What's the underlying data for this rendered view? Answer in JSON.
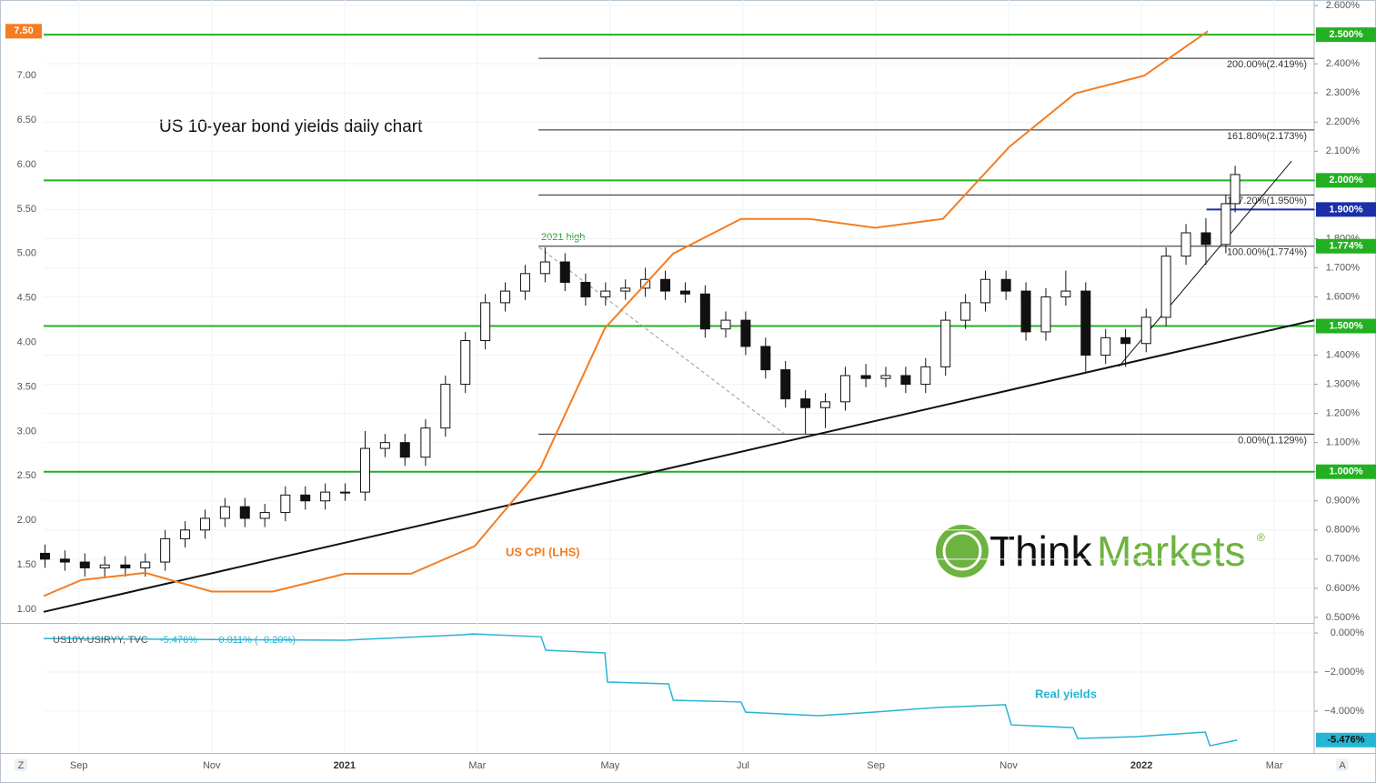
{
  "chart_data": {
    "type": "candlestick",
    "title": "US 10-year bond yields daily chart",
    "annotations": {
      "high": "2021 high",
      "real": "Real yields"
    },
    "logo": {
      "part1": "Think",
      "part2": "Markets",
      "mark": "®"
    },
    "corner_buttons": [
      "Z",
      "A"
    ],
    "xlim": [
      0.47,
      19.6
    ],
    "xticks": [
      {
        "value": 1,
        "label": "Sep"
      },
      {
        "value": 3,
        "label": "Nov"
      },
      {
        "value": 5,
        "label": "2021"
      },
      {
        "value": 7,
        "label": "Mar"
      },
      {
        "value": 9,
        "label": "May"
      },
      {
        "value": 11,
        "label": "Jul"
      },
      {
        "value": 13,
        "label": "Sep"
      },
      {
        "value": 15,
        "label": "Nov"
      },
      {
        "value": 17,
        "label": "2022"
      },
      {
        "value": 19,
        "label": "Mar"
      }
    ],
    "ylim": [
      0.481,
      2.619
    ],
    "yticks": [
      {
        "value": 0.5,
        "label": "0.500%"
      },
      {
        "value": 0.6,
        "label": "0.600%"
      },
      {
        "value": 0.7,
        "label": "0.700%"
      },
      {
        "value": 0.8,
        "label": "0.800%"
      },
      {
        "value": 0.9,
        "label": "0.900%"
      },
      {
        "value": 1.0,
        "label": "1.000%"
      },
      {
        "value": 1.1,
        "label": "1.100%"
      },
      {
        "value": 1.2,
        "label": "1.200%"
      },
      {
        "value": 1.3,
        "label": "1.300%"
      },
      {
        "value": 1.4,
        "label": "1.400%"
      },
      {
        "value": 1.5,
        "label": "1.500%"
      },
      {
        "value": 1.6,
        "label": "1.600%"
      },
      {
        "value": 1.7,
        "label": "1.700%"
      },
      {
        "value": 1.8,
        "label": "1.800%"
      },
      {
        "value": 1.9,
        "label": "1.900%"
      },
      {
        "value": 2.0,
        "label": "2.000%"
      },
      {
        "value": 2.1,
        "label": "2.100%"
      },
      {
        "value": 2.2,
        "label": "2.200%"
      },
      {
        "value": 2.3,
        "label": "2.300%"
      },
      {
        "value": 2.4,
        "label": "2.400%"
      },
      {
        "value": 2.5,
        "label": "2.500%"
      },
      {
        "value": 2.6,
        "label": "2.600%"
      }
    ],
    "y2lim": [
      0.847,
      7.851
    ],
    "y2ticks": [
      {
        "value": 1,
        "label": "1.00"
      },
      {
        "value": 1.5,
        "label": "1.50"
      },
      {
        "value": 2,
        "label": "2.00"
      },
      {
        "value": 2.5,
        "label": "2.50"
      },
      {
        "value": 3,
        "label": "3.00"
      },
      {
        "value": 3.5,
        "label": "3.50"
      },
      {
        "value": 4,
        "label": "4.00"
      },
      {
        "value": 4.5,
        "label": "4.50"
      },
      {
        "value": 5,
        "label": "5.00"
      },
      {
        "value": 5.5,
        "label": "5.50"
      },
      {
        "value": 6,
        "label": "6.00"
      },
      {
        "value": 6.5,
        "label": "6.50"
      },
      {
        "value": 7,
        "label": "7.00"
      }
    ],
    "y2_badge": {
      "value": 7.5,
      "label": "7.50",
      "color": "#f57c20"
    },
    "candles": {
      "x": [
        0.49,
        0.79,
        1.09,
        1.39,
        1.7,
        2.0,
        2.3,
        2.6,
        2.9,
        3.2,
        3.5,
        3.8,
        4.11,
        4.41,
        4.71,
        5.01,
        5.31,
        5.61,
        5.91,
        6.22,
        6.52,
        6.82,
        7.12,
        7.42,
        7.72,
        8.02,
        8.32,
        8.63,
        8.93,
        9.23,
        9.53,
        9.83,
        10.13,
        10.43,
        10.74,
        11.04,
        11.34,
        11.64,
        11.94,
        12.24,
        12.54,
        12.85,
        13.15,
        13.45,
        13.75,
        14.05,
        14.35,
        14.65,
        14.96,
        15.26,
        15.56,
        15.86,
        16.16,
        16.46,
        16.76,
        17.07,
        17.37,
        17.67,
        17.97,
        18.27,
        18.41
      ],
      "open": [
        0.72,
        0.7,
        0.69,
        0.67,
        0.68,
        0.67,
        0.69,
        0.77,
        0.8,
        0.84,
        0.88,
        0.84,
        0.86,
        0.92,
        0.9,
        0.93,
        0.93,
        1.08,
        1.1,
        1.05,
        1.15,
        1.3,
        1.45,
        1.58,
        1.62,
        1.68,
        1.72,
        1.65,
        1.6,
        1.62,
        1.63,
        1.66,
        1.62,
        1.61,
        1.49,
        1.52,
        1.43,
        1.35,
        1.25,
        1.22,
        1.24,
        1.33,
        1.32,
        1.33,
        1.3,
        1.36,
        1.52,
        1.58,
        1.66,
        1.62,
        1.48,
        1.6,
        1.62,
        1.4,
        1.46,
        1.44,
        1.53,
        1.74,
        1.82,
        1.78,
        1.92
      ],
      "high": [
        0.75,
        0.73,
        0.72,
        0.71,
        0.71,
        0.72,
        0.8,
        0.83,
        0.87,
        0.91,
        0.91,
        0.89,
        0.95,
        0.95,
        0.96,
        0.96,
        1.14,
        1.13,
        1.13,
        1.18,
        1.33,
        1.48,
        1.61,
        1.65,
        1.71,
        1.77,
        1.75,
        1.68,
        1.65,
        1.66,
        1.7,
        1.69,
        1.65,
        1.64,
        1.55,
        1.55,
        1.46,
        1.38,
        1.28,
        1.27,
        1.36,
        1.37,
        1.36,
        1.36,
        1.39,
        1.55,
        1.61,
        1.69,
        1.69,
        1.65,
        1.63,
        1.69,
        1.65,
        1.49,
        1.49,
        1.56,
        1.77,
        1.85,
        1.87,
        1.95,
        2.05
      ],
      "low": [
        0.67,
        0.66,
        0.64,
        0.64,
        0.64,
        0.64,
        0.66,
        0.74,
        0.77,
        0.81,
        0.81,
        0.81,
        0.83,
        0.87,
        0.87,
        0.9,
        0.9,
        1.05,
        1.02,
        1.02,
        1.12,
        1.27,
        1.42,
        1.55,
        1.59,
        1.65,
        1.62,
        1.57,
        1.57,
        1.59,
        1.6,
        1.59,
        1.58,
        1.46,
        1.46,
        1.4,
        1.32,
        1.22,
        1.13,
        1.15,
        1.21,
        1.29,
        1.29,
        1.27,
        1.27,
        1.33,
        1.49,
        1.55,
        1.59,
        1.45,
        1.45,
        1.57,
        1.34,
        1.37,
        1.36,
        1.41,
        1.5,
        1.71,
        1.71,
        1.75,
        1.89
      ],
      "close": [
        0.7,
        0.69,
        0.67,
        0.68,
        0.67,
        0.69,
        0.77,
        0.8,
        0.84,
        0.88,
        0.84,
        0.86,
        0.92,
        0.9,
        0.93,
        0.93,
        1.08,
        1.1,
        1.05,
        1.15,
        1.3,
        1.45,
        1.58,
        1.62,
        1.68,
        1.72,
        1.65,
        1.6,
        1.62,
        1.63,
        1.66,
        1.62,
        1.61,
        1.49,
        1.52,
        1.43,
        1.35,
        1.25,
        1.22,
        1.24,
        1.33,
        1.32,
        1.33,
        1.3,
        1.36,
        1.52,
        1.58,
        1.66,
        1.62,
        1.48,
        1.6,
        1.62,
        1.4,
        1.46,
        1.44,
        1.53,
        1.74,
        1.82,
        1.78,
        1.92,
        2.02
      ]
    },
    "series": [
      {
        "name": "US CPI (LHS)",
        "color": "#f57c20",
        "axis": "y2",
        "x": [
          0.47,
          1.04,
          2.0,
          3.0,
          3.92,
          5.01,
          6.0,
          6.96,
          7.95,
          8.92,
          9.95,
          10.97,
          12.0,
          12.99,
          14.01,
          15.01,
          16.0,
          17.04,
          18.0
        ],
        "values": [
          1.15,
          1.33,
          1.41,
          1.2,
          1.2,
          1.4,
          1.4,
          1.71,
          2.59,
          4.16,
          5.0,
          5.39,
          5.39,
          5.29,
          5.39,
          6.2,
          6.8,
          7.0,
          7.5
        ]
      }
    ],
    "levels": [
      {
        "value": 2.5,
        "label": "2.500%",
        "color": "#22b022"
      },
      {
        "value": 2.0,
        "label": "2.000%",
        "color": "#22b022"
      },
      {
        "value": 1.5,
        "label": "1.500%",
        "color": "#22b022"
      },
      {
        "value": 1.0,
        "label": "1.000%",
        "color": "#22b022"
      }
    ],
    "resistance": {
      "value": 1.9,
      "label": "1.900%",
      "color": "#1a2fa8",
      "x_start": 17.98
    },
    "badge_1774": {
      "value": 1.774,
      "label": "1.774%",
      "color": "#22b022"
    },
    "fib": {
      "x_start": 7.92,
      "levels": [
        {
          "value": 2.419,
          "label": "200.00%(2.419%)"
        },
        {
          "value": 2.173,
          "label": "161.80%(2.173%)"
        },
        {
          "value": 1.95,
          "label": "127.20%(1.950%)"
        },
        {
          "value": 1.774,
          "label": "100.00%(1.774%)"
        },
        {
          "value": 1.129,
          "label": "0.00%(1.129%)"
        }
      ]
    },
    "trendlines": [
      {
        "x": [
          0.47,
          19.6
        ],
        "y": [
          0.519,
          1.52
        ]
      },
      {
        "x": [
          16.66,
          19.26
        ],
        "y": [
          1.361,
          2.066
        ]
      }
    ],
    "dashed_line": {
      "x": [
        7.93,
        11.62
      ],
      "y": [
        1.77,
        1.13
      ]
    },
    "lower_pane": {
      "title": "US10Y-USIRYY, TVC",
      "change_label": "−0.011% (−0.20%)",
      "last_value_label": "-5.476%",
      "color": "#26b5d2",
      "ylim": [
        -6.14,
        0.47
      ],
      "yticks": [
        {
          "value": 0,
          "label": "0.000%"
        },
        {
          "value": -2,
          "label": "−2.000%"
        },
        {
          "value": -4,
          "label": "−4.000%"
        }
      ],
      "x": [
        0.47,
        4.99,
        6.79,
        6.93,
        7.96,
        8.03,
        8.92,
        8.96,
        9.88,
        9.95,
        10.97,
        11.04,
        12.14,
        12.96,
        13.92,
        14.95,
        15.04,
        15.97,
        16.04,
        16.93,
        17.96,
        18.03,
        18.44
      ],
      "values": [
        -0.28,
        -0.37,
        -0.09,
        -0.05,
        -0.19,
        -0.88,
        -1.02,
        -2.51,
        -2.6,
        -3.44,
        -3.53,
        -4.05,
        -4.23,
        -4.05,
        -3.81,
        -3.67,
        -4.7,
        -4.84,
        -5.4,
        -5.3,
        -5.07,
        -5.77,
        -5.476
      ]
    }
  }
}
